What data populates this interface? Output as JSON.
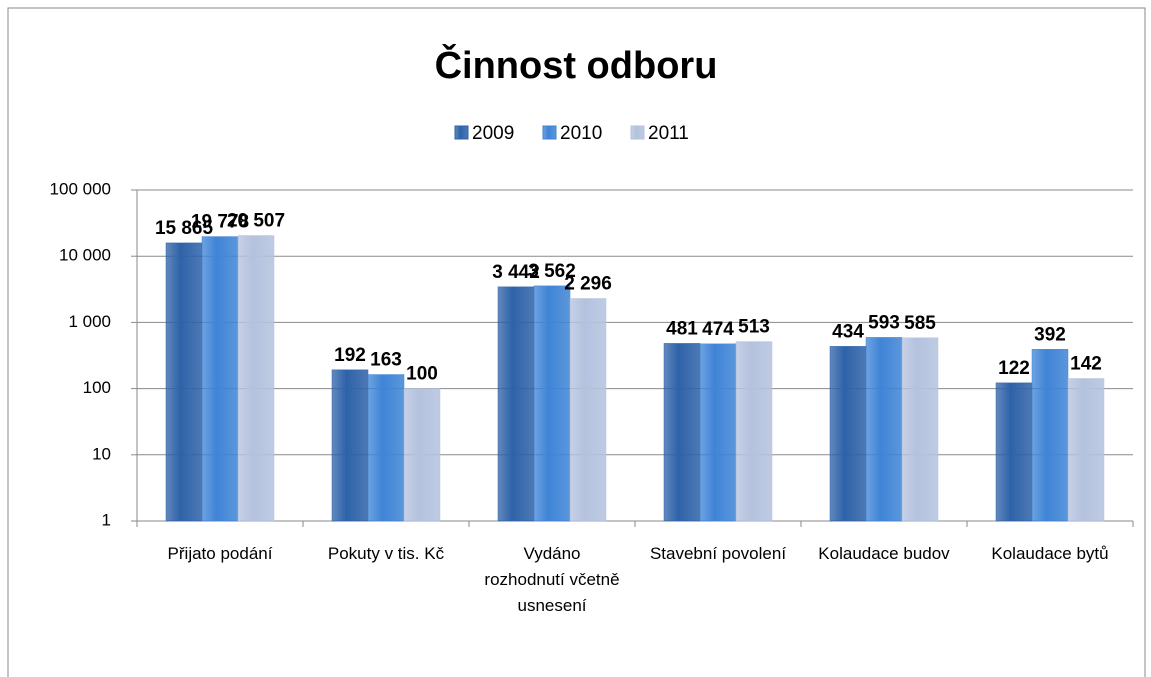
{
  "chart_data": {
    "type": "bar",
    "title": "Činnost odboru",
    "categories": [
      "Přijato podání",
      "Pokuty v tis. Kč",
      "Vydáno rozhodnutí včetně usnesení",
      "Stavební povolení",
      "Kolaudace budov",
      "Kolaudace bytů"
    ],
    "series": [
      {
        "name": "2009",
        "color": "#2e62a8",
        "values": [
          15865,
          192,
          3442,
          481,
          434,
          122
        ],
        "value_labels": [
          "15 865",
          "192",
          "3 442",
          "481",
          "434",
          "122"
        ]
      },
      {
        "name": "2010",
        "color": "#3f84d6",
        "values": [
          19778,
          163,
          3562,
          474,
          593,
          392
        ],
        "value_labels": [
          "19 778",
          "163",
          "3 562",
          "474",
          "593",
          "392"
        ]
      },
      {
        "name": "2011",
        "color": "#b4c2de",
        "values": [
          20507,
          100,
          2296,
          513,
          585,
          142
        ],
        "value_labels": [
          "20 507",
          "100",
          "2 296",
          "513",
          "585",
          "142"
        ]
      }
    ],
    "ylim": [
      1,
      100000
    ],
    "yticks": [
      1,
      10,
      100,
      {
        "value": 1000,
        "label": "1 000"
      },
      {
        "value": 10000,
        "label": "10 000"
      },
      {
        "value": 100000,
        "label": "100 000"
      }
    ],
    "log_scale": true,
    "grid": true,
    "legend": "top"
  }
}
